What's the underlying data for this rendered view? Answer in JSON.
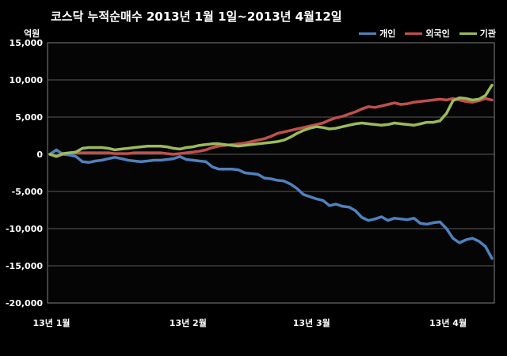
{
  "chart_data": {
    "type": "line",
    "title": "코스닥  누적순매수 2013년 1월 1일~2013년 4월12일",
    "unit_label": "억원",
    "ylim": [
      -20000,
      15000
    ],
    "y_ticks": [
      "15,000",
      "10,000",
      "5,000",
      "0",
      "-5,000",
      "-10,000",
      "-15,000",
      "-20,000"
    ],
    "y_tick_values": [
      15000,
      10000,
      5000,
      0,
      -5000,
      -10000,
      -15000,
      -20000
    ],
    "x_ticks": [
      {
        "label": "13년 1월",
        "index": 0
      },
      {
        "label": "13년 2월",
        "index": 21
      },
      {
        "label": "13년 3월",
        "index": 40
      },
      {
        "label": "13년 4월",
        "index": 61
      }
    ],
    "grid": true,
    "legend_position": "top-right",
    "series": [
      {
        "name": "개인",
        "color": "#4f81bd",
        "values": [
          0,
          600,
          0,
          -100,
          -300,
          -1000,
          -1100,
          -900,
          -800,
          -600,
          -400,
          -600,
          -800,
          -900,
          -1000,
          -900,
          -800,
          -800,
          -700,
          -600,
          -300,
          -700,
          -800,
          -900,
          -1000,
          -1700,
          -2000,
          -2000,
          -2000,
          -2100,
          -2500,
          -2600,
          -2700,
          -3200,
          -3300,
          -3500,
          -3600,
          -4000,
          -4600,
          -5400,
          -5700,
          -6000,
          -6200,
          -6900,
          -6700,
          -7000,
          -7100,
          -7600,
          -8500,
          -8900,
          -8700,
          -8400,
          -8900,
          -8600,
          -8700,
          -8800,
          -8600,
          -9300,
          -9400,
          -9200,
          -9100,
          -10000,
          -11300,
          -11900,
          -11500,
          -11300,
          -11700,
          -12400,
          -14000
        ]
      },
      {
        "name": "외국인",
        "color": "#c0504d",
        "values": [
          0,
          -300,
          0,
          100,
          200,
          200,
          200,
          200,
          200,
          200,
          100,
          100,
          100,
          200,
          200,
          200,
          200,
          200,
          100,
          0,
          100,
          200,
          300,
          400,
          600,
          900,
          1100,
          1200,
          1300,
          1400,
          1500,
          1700,
          1900,
          2100,
          2400,
          2800,
          3000,
          3200,
          3400,
          3600,
          3800,
          4000,
          4200,
          4600,
          4900,
          5100,
          5400,
          5700,
          6100,
          6400,
          6300,
          6500,
          6700,
          6900,
          6700,
          6800,
          7000,
          7100,
          7200,
          7300,
          7400,
          7300,
          7500,
          7300,
          7100,
          7000,
          7200,
          7500,
          7300
        ]
      },
      {
        "name": "기관",
        "color": "#9bbb59",
        "values": [
          0,
          -300,
          100,
          200,
          300,
          800,
          900,
          900,
          900,
          800,
          600,
          700,
          800,
          900,
          1000,
          1100,
          1100,
          1100,
          1000,
          800,
          700,
          900,
          1000,
          1200,
          1300,
          1400,
          1400,
          1300,
          1200,
          1100,
          1200,
          1300,
          1400,
          1500,
          1600,
          1700,
          1900,
          2300,
          2800,
          3200,
          3500,
          3700,
          3600,
          3400,
          3500,
          3700,
          3900,
          4100,
          4200,
          4100,
          4000,
          3900,
          4000,
          4200,
          4100,
          4000,
          3900,
          4100,
          4300,
          4300,
          4500,
          5500,
          7200,
          7600,
          7500,
          7300,
          7400,
          7900,
          9300
        ]
      }
    ]
  }
}
